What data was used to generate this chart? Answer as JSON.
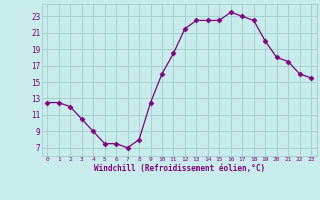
{
  "hours": [
    0,
    1,
    2,
    3,
    4,
    5,
    6,
    7,
    8,
    9,
    10,
    11,
    12,
    13,
    14,
    15,
    16,
    17,
    18,
    19,
    20,
    21,
    22,
    23
  ],
  "values": [
    12.5,
    12.5,
    12.0,
    10.5,
    9.0,
    7.5,
    7.5,
    7.0,
    8.0,
    12.5,
    16.0,
    18.5,
    21.5,
    22.5,
    22.5,
    22.5,
    23.5,
    23.0,
    22.5,
    20.0,
    18.0,
    17.5,
    16.0,
    15.5
  ],
  "line_color": "#800080",
  "marker": "D",
  "marker_size": 2.5,
  "bg_color": "#c8ecec",
  "grid_color": "#a8d0d0",
  "xlabel": "Windchill (Refroidissement éolien,°C)",
  "ylabel_ticks": [
    7,
    9,
    11,
    13,
    15,
    17,
    19,
    21,
    23
  ],
  "ylim": [
    6.0,
    24.5
  ],
  "xlim": [
    -0.5,
    23.5
  ],
  "label_color": "#800080",
  "tick_color": "#800080"
}
